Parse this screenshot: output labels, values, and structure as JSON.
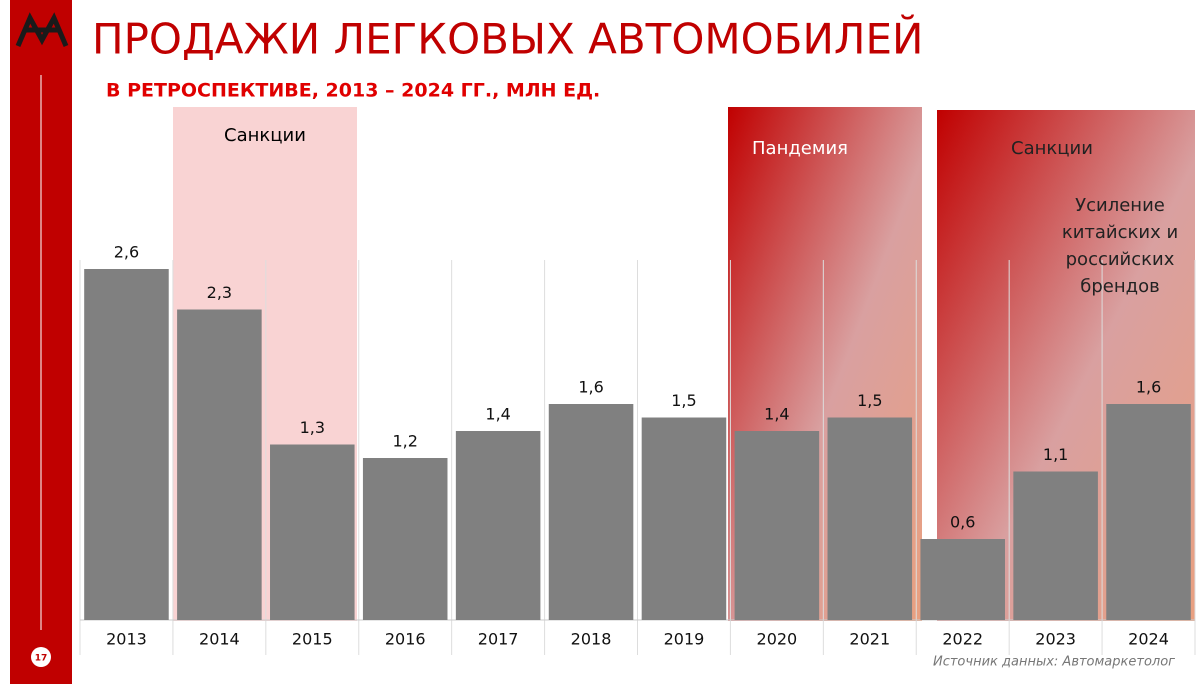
{
  "chart_data": {
    "type": "bar",
    "title": "ПРОДАЖИ ЛЕГКОВЫХ АВТОМОБИЛЕЙ",
    "subtitle": "В РЕТРОСПЕКТИВЕ, 2013 – 2024 ГГ., МЛН ЕД.",
    "categories": [
      "2013",
      "2014",
      "2015",
      "2016",
      "2017",
      "2018",
      "2019",
      "2020",
      "2021",
      "2022",
      "2023",
      "2024"
    ],
    "values": [
      2.6,
      2.3,
      1.3,
      1.2,
      1.4,
      1.6,
      1.5,
      1.4,
      1.5,
      0.6,
      1.1,
      1.6
    ],
    "value_labels": [
      "2,6",
      "2,3",
      "1,3",
      "1,2",
      "1,4",
      "1,6",
      "1,5",
      "1,4",
      "1,5",
      "0,6",
      "1,1",
      "1,6"
    ],
    "color": "#808080",
    "annotations": [
      "Санкции",
      "Пандемия",
      "Санкции",
      "Усиление китайских и российских брендов"
    ],
    "source": "Источник данных: Автомаркетолог",
    "page_number": "17"
  }
}
